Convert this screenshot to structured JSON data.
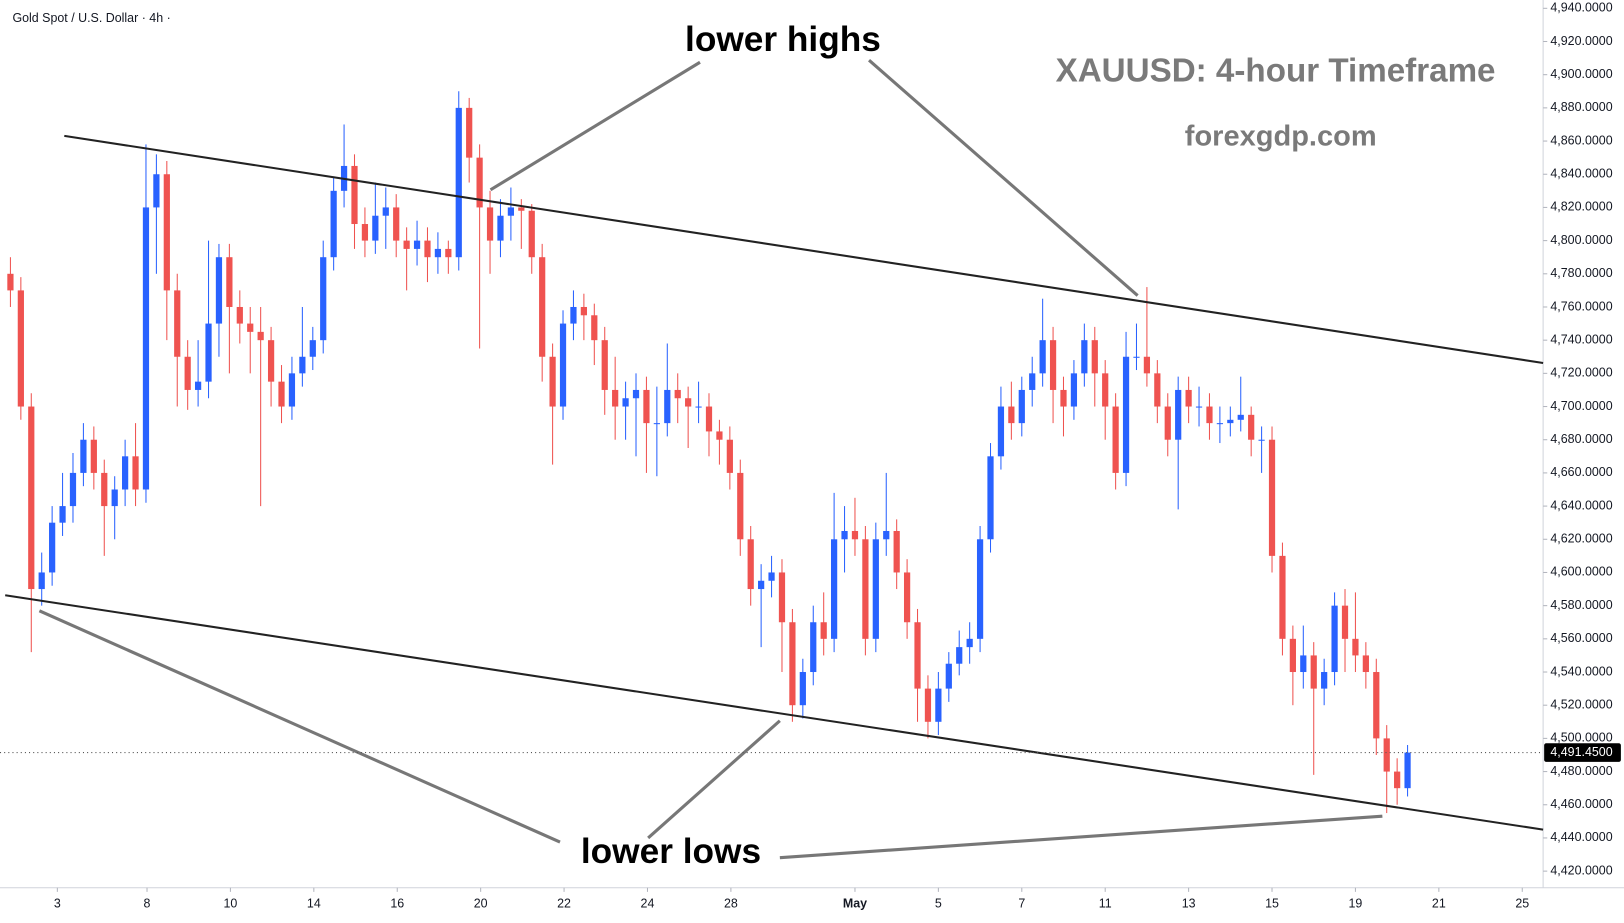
{
  "chart_data": {
    "type": "candlestick",
    "header": "Gold Spot / U.S. Dollar · 4h ·",
    "title": "XAUUSD: 4-hour Timeframe",
    "subtitle": "forexgdp.com",
    "annotations": [
      "lower highs",
      "lower lows"
    ],
    "up_color": "#2962ff",
    "down_color": "#ef5350",
    "grid": false,
    "xlim": [
      0,
      148
    ],
    "ylim": [
      4410,
      4945
    ],
    "xticks": [
      {
        "value": 5.5,
        "label": "3"
      },
      {
        "value": 14.1,
        "label": "8"
      },
      {
        "value": 22.1,
        "label": "10"
      },
      {
        "value": 30.1,
        "label": "14"
      },
      {
        "value": 38.1,
        "label": "16"
      },
      {
        "value": 46.1,
        "label": "20"
      },
      {
        "value": 54.1,
        "label": "22"
      },
      {
        "value": 62.1,
        "label": "24"
      },
      {
        "value": 70.1,
        "label": "28"
      },
      {
        "value": 82,
        "label": "May"
      },
      {
        "value": 90,
        "label": "5"
      },
      {
        "value": 98,
        "label": "7"
      },
      {
        "value": 106,
        "label": "11"
      },
      {
        "value": 114,
        "label": "13"
      },
      {
        "value": 122,
        "label": "15"
      },
      {
        "value": 130,
        "label": "19"
      },
      {
        "value": 138,
        "label": "21"
      },
      {
        "value": 146,
        "label": "25"
      }
    ],
    "yticks": [
      {
        "value": 4420,
        "label": "4,420.0000"
      },
      {
        "value": 4440,
        "label": "4,440.0000"
      },
      {
        "value": 4460,
        "label": "4,460.0000"
      },
      {
        "value": 4480,
        "label": "4,480.0000"
      },
      {
        "value": 4500,
        "label": "4,500.0000"
      },
      {
        "value": 4520,
        "label": "4,520.0000"
      },
      {
        "value": 4540,
        "label": "4,540.0000"
      },
      {
        "value": 4560,
        "label": "4,560.0000"
      },
      {
        "value": 4580,
        "label": "4,580.0000"
      },
      {
        "value": 4600,
        "label": "4,600.0000"
      },
      {
        "value": 4620,
        "label": "4,620.0000"
      },
      {
        "value": 4640,
        "label": "4,640.0000"
      },
      {
        "value": 4660,
        "label": "4,660.0000"
      },
      {
        "value": 4680,
        "label": "4,680.0000"
      },
      {
        "value": 4700,
        "label": "4,700.0000"
      },
      {
        "value": 4720,
        "label": "4,720.0000"
      },
      {
        "value": 4740,
        "label": "4,740.0000"
      },
      {
        "value": 4760,
        "label": "4,760.0000"
      },
      {
        "value": 4780,
        "label": "4,780.0000"
      },
      {
        "value": 4800,
        "label": "4,800.0000"
      },
      {
        "value": 4820,
        "label": "4,820.0000"
      },
      {
        "value": 4840,
        "label": "4,840.0000"
      },
      {
        "value": 4860,
        "label": "4,860.0000"
      },
      {
        "value": 4880,
        "label": "4,880.0000"
      },
      {
        "value": 4900,
        "label": "4,900.0000"
      },
      {
        "value": 4920,
        "label": "4,920.0000"
      },
      {
        "value": 4940,
        "label": "4,940.0000"
      }
    ],
    "last_price": {
      "value": 4491.45,
      "label": "4,491.4500"
    },
    "x": [
      1,
      2,
      3,
      4,
      5,
      6,
      7,
      8,
      9,
      10,
      11,
      12,
      13,
      14,
      15,
      16,
      17,
      18,
      19,
      20,
      21,
      22,
      23,
      24,
      25,
      26,
      27,
      28,
      29,
      30,
      31,
      32,
      33,
      34,
      35,
      36,
      37,
      38,
      39,
      40,
      41,
      42,
      43,
      44,
      45,
      46,
      47,
      48,
      49,
      50,
      51,
      52,
      53,
      54,
      55,
      56,
      57,
      58,
      59,
      60,
      61,
      62,
      63,
      64,
      65,
      66,
      67,
      68,
      69,
      70,
      71,
      72,
      73,
      74,
      75,
      76,
      77,
      78,
      79,
      80,
      81,
      82,
      83,
      84,
      85,
      86,
      87,
      88,
      89,
      90,
      91,
      92,
      93,
      94,
      95,
      96,
      97,
      98,
      99,
      100,
      101,
      102,
      103,
      104,
      105,
      106,
      107,
      108,
      109,
      110,
      111,
      112,
      113,
      114,
      115,
      116,
      117,
      118,
      119,
      120,
      121,
      122,
      123,
      124,
      125,
      126,
      127,
      128,
      129,
      130,
      131,
      132,
      133,
      134,
      135
    ],
    "ohlc": [
      [
        4780,
        4790,
        4760,
        4770
      ],
      [
        4770,
        4778,
        4692,
        4700
      ],
      [
        4700,
        4708,
        4552,
        4590
      ],
      [
        4590,
        4612,
        4580,
        4600
      ],
      [
        4600,
        4640,
        4592,
        4630
      ],
      [
        4630,
        4660,
        4622,
        4640
      ],
      [
        4640,
        4672,
        4630,
        4660
      ],
      [
        4660,
        4690,
        4652,
        4680
      ],
      [
        4680,
        4688,
        4650,
        4660
      ],
      [
        4660,
        4668,
        4610,
        4640
      ],
      [
        4640,
        4658,
        4620,
        4650
      ],
      [
        4650,
        4680,
        4640,
        4670
      ],
      [
        4670,
        4690,
        4640,
        4650
      ],
      [
        4650,
        4858,
        4642,
        4820
      ],
      [
        4820,
        4852,
        4780,
        4840
      ],
      [
        4840,
        4848,
        4740,
        4770
      ],
      [
        4770,
        4780,
        4700,
        4730
      ],
      [
        4730,
        4740,
        4698,
        4710
      ],
      [
        4710,
        4740,
        4700,
        4715
      ],
      [
        4715,
        4800,
        4705,
        4750
      ],
      [
        4750,
        4798,
        4730,
        4790
      ],
      [
        4790,
        4798,
        4720,
        4760
      ],
      [
        4760,
        4770,
        4738,
        4750
      ],
      [
        4750,
        4760,
        4720,
        4745
      ],
      [
        4745,
        4760,
        4640,
        4740
      ],
      [
        4740,
        4748,
        4700,
        4715
      ],
      [
        4715,
        4725,
        4690,
        4700
      ],
      [
        4700,
        4730,
        4692,
        4720
      ],
      [
        4720,
        4760,
        4712,
        4730
      ],
      [
        4730,
        4748,
        4722,
        4740
      ],
      [
        4740,
        4800,
        4732,
        4790
      ],
      [
        4790,
        4838,
        4782,
        4830
      ],
      [
        4830,
        4870,
        4820,
        4845
      ],
      [
        4845,
        4852,
        4795,
        4810
      ],
      [
        4810,
        4820,
        4790,
        4800
      ],
      [
        4800,
        4835,
        4792,
        4815
      ],
      [
        4815,
        4832,
        4795,
        4820
      ],
      [
        4820,
        4828,
        4790,
        4800
      ],
      [
        4800,
        4808,
        4770,
        4795
      ],
      [
        4795,
        4812,
        4785,
        4800
      ],
      [
        4800,
        4808,
        4775,
        4790
      ],
      [
        4790,
        4805,
        4780,
        4795
      ],
      [
        4795,
        4800,
        4780,
        4790
      ],
      [
        4790,
        4890,
        4782,
        4880
      ],
      [
        4880,
        4886,
        4835,
        4850
      ],
      [
        4850,
        4858,
        4735,
        4820
      ],
      [
        4820,
        4830,
        4780,
        4800
      ],
      [
        4800,
        4825,
        4790,
        4815
      ],
      [
        4815,
        4832,
        4800,
        4820
      ],
      [
        4820,
        4825,
        4795,
        4818
      ],
      [
        4818,
        4822,
        4780,
        4790
      ],
      [
        4790,
        4798,
        4715,
        4730
      ],
      [
        4730,
        4738,
        4665,
        4700
      ],
      [
        4700,
        4758,
        4692,
        4750
      ],
      [
        4750,
        4770,
        4740,
        4760
      ],
      [
        4760,
        4768,
        4740,
        4755
      ],
      [
        4755,
        4762,
        4725,
        4740
      ],
      [
        4740,
        4748,
        4695,
        4710
      ],
      [
        4710,
        4730,
        4680,
        4700
      ],
      [
        4700,
        4715,
        4680,
        4705
      ],
      [
        4705,
        4720,
        4670,
        4710
      ],
      [
        4710,
        4718,
        4660,
        4690
      ],
      [
        4690,
        4712,
        4658,
        4690
      ],
      [
        4690,
        4738,
        4682,
        4710
      ],
      [
        4710,
        4720,
        4690,
        4705
      ],
      [
        4705,
        4712,
        4675,
        4700
      ],
      [
        4700,
        4715,
        4690,
        4700
      ],
      [
        4700,
        4708,
        4670,
        4685
      ],
      [
        4685,
        4692,
        4665,
        4680
      ],
      [
        4680,
        4688,
        4650,
        4660
      ],
      [
        4660,
        4668,
        4610,
        4620
      ],
      [
        4620,
        4628,
        4580,
        4590
      ],
      [
        4590,
        4605,
        4555,
        4595
      ],
      [
        4595,
        4610,
        4585,
        4600
      ],
      [
        4600,
        4608,
        4540,
        4570
      ],
      [
        4570,
        4578,
        4510,
        4520
      ],
      [
        4520,
        4548,
        4512,
        4540
      ],
      [
        4540,
        4580,
        4532,
        4570
      ],
      [
        4570,
        4588,
        4550,
        4560
      ],
      [
        4560,
        4648,
        4552,
        4620
      ],
      [
        4620,
        4640,
        4600,
        4625
      ],
      [
        4625,
        4645,
        4610,
        4620
      ],
      [
        4620,
        4628,
        4550,
        4560
      ],
      [
        4560,
        4630,
        4552,
        4620
      ],
      [
        4620,
        4660,
        4610,
        4625
      ],
      [
        4625,
        4632,
        4590,
        4600
      ],
      [
        4600,
        4608,
        4560,
        4570
      ],
      [
        4570,
        4578,
        4510,
        4530
      ],
      [
        4530,
        4538,
        4500,
        4510
      ],
      [
        4510,
        4540,
        4502,
        4530
      ],
      [
        4530,
        4552,
        4522,
        4545
      ],
      [
        4545,
        4565,
        4538,
        4555
      ],
      [
        4555,
        4570,
        4545,
        4560
      ],
      [
        4560,
        4628,
        4552,
        4620
      ],
      [
        4620,
        4678,
        4612,
        4670
      ],
      [
        4670,
        4712,
        4662,
        4700
      ],
      [
        4700,
        4715,
        4680,
        4690
      ],
      [
        4690,
        4718,
        4682,
        4710
      ],
      [
        4710,
        4730,
        4700,
        4720
      ],
      [
        4720,
        4765,
        4712,
        4740
      ],
      [
        4740,
        4748,
        4690,
        4710
      ],
      [
        4710,
        4718,
        4682,
        4700
      ],
      [
        4700,
        4728,
        4692,
        4720
      ],
      [
        4720,
        4750,
        4712,
        4740
      ],
      [
        4740,
        4748,
        4700,
        4720
      ],
      [
        4720,
        4728,
        4680,
        4700
      ],
      [
        4700,
        4708,
        4650,
        4660
      ],
      [
        4660,
        4745,
        4652,
        4730
      ],
      [
        4730,
        4750,
        4722,
        4730
      ],
      [
        4730,
        4772,
        4712,
        4720
      ],
      [
        4720,
        4728,
        4690,
        4700
      ],
      [
        4700,
        4708,
        4670,
        4680
      ],
      [
        4680,
        4718,
        4638,
        4710
      ],
      [
        4710,
        4718,
        4690,
        4700
      ],
      [
        4700,
        4712,
        4688,
        4700
      ],
      [
        4700,
        4708,
        4680,
        4690
      ],
      [
        4690,
        4700,
        4678,
        4690
      ],
      [
        4690,
        4700,
        4682,
        4692
      ],
      [
        4692,
        4718,
        4685,
        4695
      ],
      [
        4695,
        4700,
        4670,
        4680
      ],
      [
        4680,
        4688,
        4660,
        4680
      ],
      [
        4680,
        4688,
        4600,
        4610
      ],
      [
        4610,
        4618,
        4550,
        4560
      ],
      [
        4560,
        4568,
        4520,
        4540
      ],
      [
        4540,
        4568,
        4530,
        4550
      ],
      [
        4550,
        4558,
        4478,
        4530
      ],
      [
        4530,
        4548,
        4520,
        4540
      ],
      [
        4540,
        4588,
        4532,
        4580
      ],
      [
        4580,
        4590,
        4540,
        4560
      ],
      [
        4560,
        4588,
        4540,
        4550
      ],
      [
        4550,
        4558,
        4530,
        4540
      ],
      [
        4540,
        4548,
        4490,
        4500
      ],
      [
        4500,
        4508,
        4455,
        4480
      ],
      [
        4480,
        4488,
        4460,
        4470
      ],
      [
        4470,
        4496,
        4465,
        4491.45
      ]
    ]
  }
}
